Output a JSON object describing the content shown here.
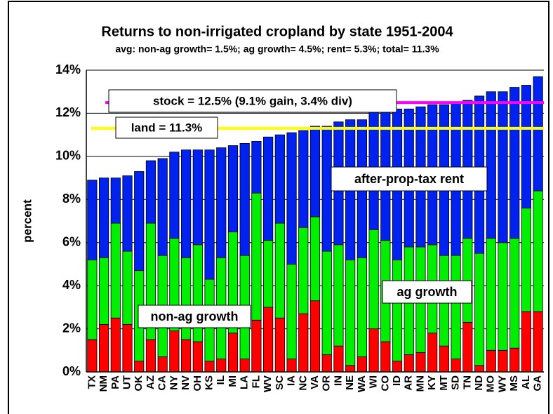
{
  "chart_data": {
    "type": "stacked_bar",
    "title": "Returns to non-irrigated cropland by state 1951-2004",
    "subtitle": "avg: non-ag growth= 1.5%; ag growth= 4.5%; rent= 5.3%; total= 11.3%",
    "y_label": "percent",
    "categories": [
      "TX",
      "NM",
      "PA",
      "UT",
      "OK",
      "AZ",
      "CA",
      "NY",
      "NV",
      "OH",
      "KS",
      "IL",
      "MI",
      "LA",
      "FL",
      "WV",
      "SC",
      "IA",
      "NC",
      "VA",
      "OR",
      "IN",
      "NE",
      "WA",
      "WI",
      "CO",
      "ID",
      "AR",
      "MN",
      "KY",
      "MT",
      "SD",
      "TN",
      "ND",
      "MO",
      "WY",
      "MS",
      "AL",
      "GA"
    ],
    "series": [
      {
        "name": "non-ag growth",
        "color": "#ff0000",
        "values": [
          1.5,
          2.2,
          2.5,
          2.2,
          0.5,
          1.5,
          0.7,
          1.9,
          1.5,
          1.4,
          0.5,
          0.6,
          1.8,
          0.6,
          2.4,
          3.0,
          2.5,
          0.6,
          2.7,
          3.3,
          0.8,
          1.2,
          0.3,
          0.7,
          2.0,
          1.4,
          0.5,
          0.8,
          0.9,
          1.8,
          1.2,
          0.6,
          2.3,
          0.3,
          1.0,
          1.0,
          1.1,
          2.8,
          2.8
        ]
      },
      {
        "name": "ag growth",
        "color": "#00ee00",
        "values": [
          3.7,
          3.1,
          4.4,
          3.4,
          4.2,
          5.4,
          4.7,
          4.3,
          3.8,
          4.5,
          3.8,
          4.7,
          4.7,
          4.8,
          5.9,
          3.1,
          4.4,
          4.4,
          4.0,
          3.9,
          4.8,
          4.7,
          4.9,
          4.6,
          4.6,
          4.7,
          4.7,
          5.0,
          4.9,
          4.1,
          4.2,
          4.8,
          3.9,
          5.2,
          5.2,
          5.0,
          5.1,
          4.8,
          5.6
        ]
      },
      {
        "name": "after-prop-tax rent",
        "color": "#0022ee",
        "values": [
          3.7,
          3.7,
          2.1,
          3.5,
          4.6,
          2.9,
          4.5,
          4.0,
          5.0,
          4.4,
          6.0,
          5.1,
          4.0,
          5.2,
          2.4,
          4.8,
          4.1,
          6.1,
          4.5,
          4.2,
          5.8,
          5.7,
          6.5,
          6.4,
          5.5,
          6.0,
          7.0,
          6.4,
          6.5,
          6.5,
          7.0,
          7.1,
          6.4,
          7.3,
          6.8,
          7.0,
          7.0,
          5.7,
          5.3
        ]
      }
    ],
    "reference_lines": [
      {
        "label": "stock = 12.5% (9.1% gain, 3.4% div)",
        "value": 12.5,
        "color": "#ff00ff"
      },
      {
        "label": "land = 11.3%",
        "value": 11.3,
        "color": "#ffff00"
      }
    ],
    "ylim": [
      0,
      14
    ],
    "yticks": [
      {
        "value": 0,
        "label": "0%"
      },
      {
        "value": 2,
        "label": "2%"
      },
      {
        "value": 4,
        "label": "4%"
      },
      {
        "value": 6,
        "label": "6%"
      },
      {
        "value": 8,
        "label": "8%"
      },
      {
        "value": 10,
        "label": "10%"
      },
      {
        "value": 12,
        "label": "12%"
      },
      {
        "value": 14,
        "label": "14%"
      }
    ],
    "grid": true
  }
}
